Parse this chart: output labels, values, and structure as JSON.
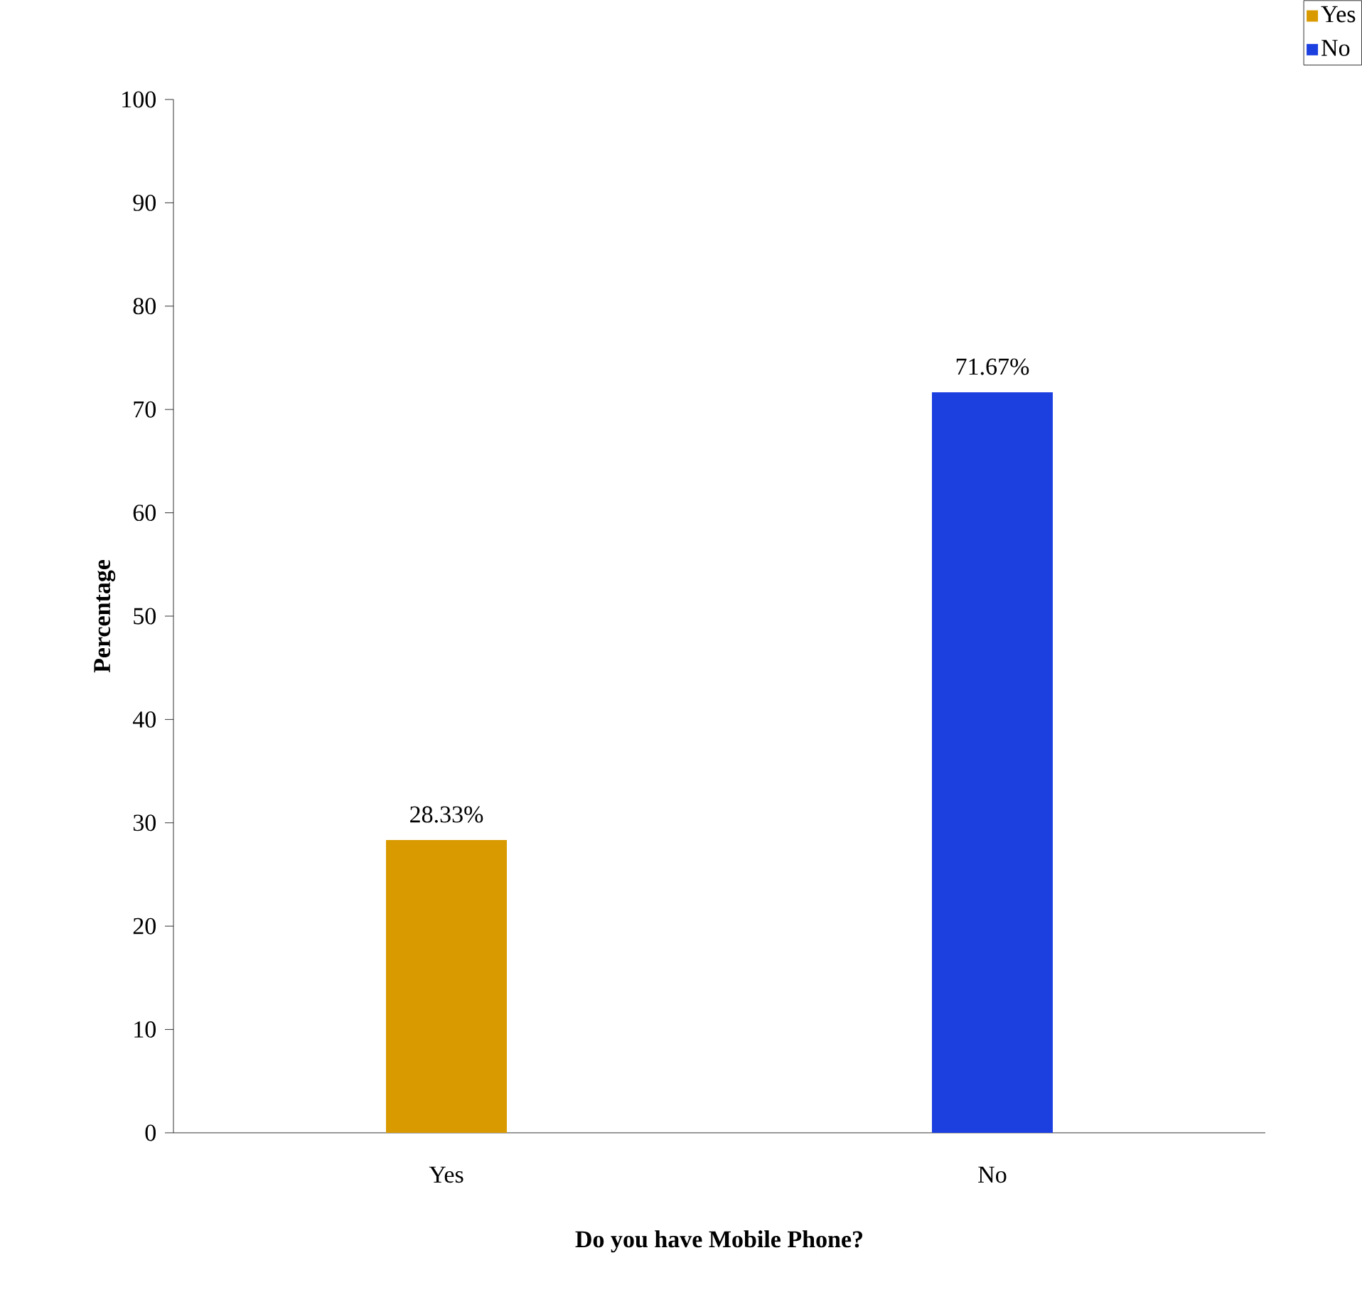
{
  "chart_data": {
    "type": "bar",
    "xlabel": "Do you have Mobile Phone?",
    "ylabel": "Percentage",
    "categories": [
      "Yes",
      "No"
    ],
    "series": [
      {
        "name": "Yes",
        "color": "#d99a00",
        "values": [
          28.33,
          null
        ],
        "value_labels": [
          "28.33%",
          null
        ]
      },
      {
        "name": "No",
        "color": "#1c3fe0",
        "values": [
          null,
          71.67
        ],
        "value_labels": [
          null,
          "71.67%"
        ]
      }
    ],
    "ylim": [
      0,
      100
    ],
    "yticks": [
      0,
      10,
      20,
      30,
      40,
      50,
      60,
      70,
      80,
      90,
      100
    ],
    "grid": false,
    "legend": "top right"
  }
}
